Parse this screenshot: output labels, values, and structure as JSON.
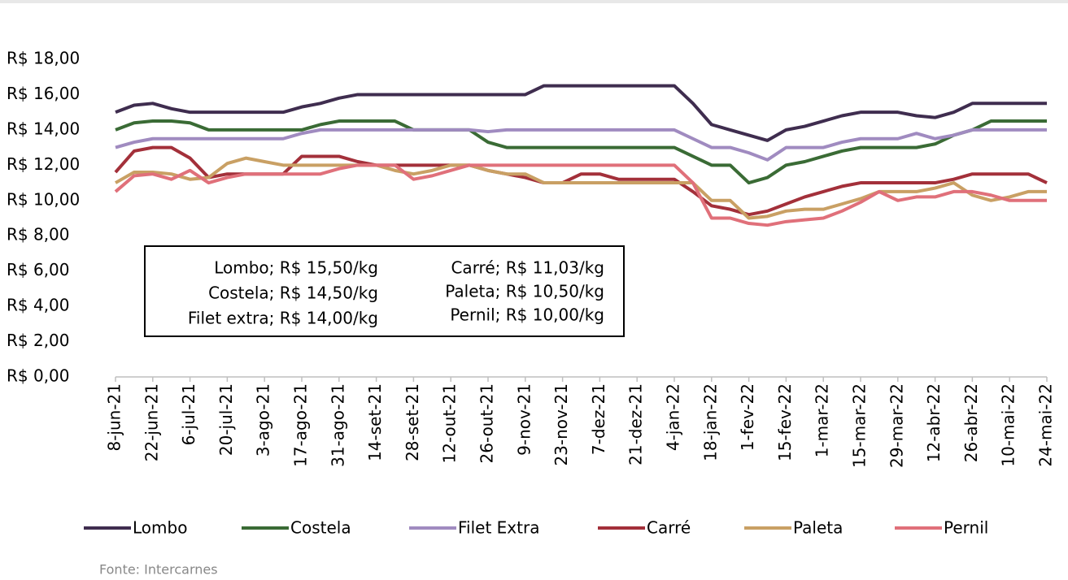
{
  "chart_data": {
    "type": "line",
    "categories": [
      "8-jun-21",
      null,
      "22-jun-21",
      null,
      "6-jul-21",
      null,
      "20-jul-21",
      null,
      "3-ago-21",
      null,
      "17-ago-21",
      null,
      "31-ago-21",
      null,
      "14-set-21",
      null,
      "28-set-21",
      null,
      "12-out-21",
      null,
      "26-out-21",
      null,
      "9-nov-21",
      null,
      "23-nov-21",
      null,
      "7-dez-21",
      null,
      "21-dez-21",
      null,
      "4-jan-22",
      null,
      "18-jan-22",
      null,
      "1-fev-22",
      null,
      "15-fev-22",
      null,
      "1-mar-22",
      null,
      "15-mar-22",
      null,
      "29-mar-22",
      null,
      "12-abr-22",
      null,
      "26-abr-22",
      null,
      "10-mai-22",
      null,
      "24-mai-22"
    ],
    "series": [
      {
        "name": "Lombo",
        "color": "#3f2d4f",
        "values": [
          15.0,
          15.4,
          15.5,
          15.2,
          15.0,
          15.0,
          15.0,
          15.0,
          15.0,
          15.0,
          15.3,
          15.5,
          15.8,
          16.0,
          16.0,
          16.0,
          16.0,
          16.0,
          16.0,
          16.0,
          16.0,
          16.0,
          16.0,
          16.5,
          16.5,
          16.5,
          16.5,
          16.5,
          16.5,
          16.5,
          16.5,
          15.5,
          14.3,
          14.0,
          13.7,
          13.4,
          14.0,
          14.2,
          14.5,
          14.8,
          15.0,
          15.0,
          15.0,
          14.8,
          14.7,
          15.0,
          15.5,
          15.5,
          15.5,
          15.5,
          15.5
        ]
      },
      {
        "name": "Costela",
        "color": "#3a6b35",
        "values": [
          14.0,
          14.4,
          14.5,
          14.5,
          14.4,
          14.0,
          14.0,
          14.0,
          14.0,
          14.0,
          14.0,
          14.3,
          14.5,
          14.5,
          14.5,
          14.5,
          14.0,
          14.0,
          14.0,
          14.0,
          13.3,
          13.0,
          13.0,
          13.0,
          13.0,
          13.0,
          13.0,
          13.0,
          13.0,
          13.0,
          13.0,
          12.5,
          12.0,
          12.0,
          11.0,
          11.3,
          12.0,
          12.2,
          12.5,
          12.8,
          13.0,
          13.0,
          13.0,
          13.0,
          13.2,
          13.7,
          14.0,
          14.5,
          14.5,
          14.5,
          14.5
        ]
      },
      {
        "name": "Filet Extra",
        "color": "#a08bc0",
        "values": [
          13.0,
          13.3,
          13.5,
          13.5,
          13.5,
          13.5,
          13.5,
          13.5,
          13.5,
          13.5,
          13.8,
          14.0,
          14.0,
          14.0,
          14.0,
          14.0,
          14.0,
          14.0,
          14.0,
          14.0,
          13.9,
          14.0,
          14.0,
          14.0,
          14.0,
          14.0,
          14.0,
          14.0,
          14.0,
          14.0,
          14.0,
          13.5,
          13.0,
          13.0,
          12.7,
          12.3,
          13.0,
          13.0,
          13.0,
          13.3,
          13.5,
          13.5,
          13.5,
          13.8,
          13.5,
          13.7,
          14.0,
          14.0,
          14.0,
          14.0,
          14.0
        ]
      },
      {
        "name": "Carré",
        "color": "#a3303a",
        "values": [
          11.6,
          12.8,
          13.0,
          13.0,
          12.4,
          11.3,
          11.5,
          11.5,
          11.5,
          11.5,
          12.5,
          12.5,
          12.5,
          12.2,
          12.0,
          12.0,
          12.0,
          12.0,
          12.0,
          12.0,
          11.7,
          11.5,
          11.3,
          11.0,
          11.0,
          11.5,
          11.5,
          11.2,
          11.2,
          11.2,
          11.2,
          10.5,
          9.7,
          9.5,
          9.2,
          9.4,
          9.8,
          10.2,
          10.5,
          10.8,
          11.0,
          11.0,
          11.0,
          11.0,
          11.0,
          11.2,
          11.5,
          11.5,
          11.5,
          11.5,
          11.0
        ]
      },
      {
        "name": "Paleta",
        "color": "#c9a064",
        "values": [
          11.0,
          11.6,
          11.6,
          11.5,
          11.2,
          11.3,
          12.1,
          12.4,
          12.2,
          12.0,
          12.0,
          12.0,
          12.0,
          12.0,
          12.0,
          11.7,
          11.5,
          11.7,
          12.0,
          12.0,
          11.7,
          11.5,
          11.5,
          11.0,
          11.0,
          11.0,
          11.0,
          11.0,
          11.0,
          11.0,
          11.0,
          11.0,
          10.0,
          10.0,
          9.0,
          9.1,
          9.4,
          9.5,
          9.5,
          9.8,
          10.1,
          10.5,
          10.5,
          10.5,
          10.7,
          11.0,
          10.3,
          10.0,
          10.2,
          10.5,
          10.5
        ]
      },
      {
        "name": "Pernil",
        "color": "#e0707a",
        "values": [
          10.5,
          11.4,
          11.5,
          11.2,
          11.7,
          11.0,
          11.3,
          11.5,
          11.5,
          11.5,
          11.5,
          11.5,
          11.8,
          12.0,
          12.0,
          12.0,
          11.2,
          11.4,
          11.7,
          12.0,
          12.0,
          12.0,
          12.0,
          12.0,
          12.0,
          12.0,
          12.0,
          12.0,
          12.0,
          12.0,
          12.0,
          11.0,
          9.0,
          9.0,
          8.7,
          8.6,
          8.8,
          8.9,
          9.0,
          9.4,
          9.9,
          10.5,
          10.0,
          10.2,
          10.2,
          10.5,
          10.5,
          10.3,
          10.0,
          10.0,
          10.0
        ]
      }
    ],
    "ylim": [
      0,
      18
    ],
    "yticks": [
      {
        "value": 0,
        "label": "R$ 0,00"
      },
      {
        "value": 2,
        "label": "R$ 2,00"
      },
      {
        "value": 4,
        "label": "R$ 4,00"
      },
      {
        "value": 6,
        "label": "R$ 6,00"
      },
      {
        "value": 8,
        "label": "R$ 8,00"
      },
      {
        "value": 10,
        "label": "R$ 10,00"
      },
      {
        "value": 12,
        "label": "R$ 12,00"
      },
      {
        "value": 14,
        "label": "R$ 14,00"
      },
      {
        "value": 16,
        "label": "R$ 16,00"
      },
      {
        "value": 18,
        "label": "R$ 18,00"
      }
    ],
    "annotations": {
      "left": [
        "Lombo; R$ 15,50/kg",
        "Costela; R$ 14,50/kg",
        "Filet extra; R$ 14,00/kg"
      ],
      "right": [
        "Carré; R$ 11,03/kg",
        "Paleta; R$ 10,50/kg",
        "Pernil; R$ 10,00/kg"
      ]
    },
    "legend": "bottom",
    "source": "Fonte: Intercarnes"
  }
}
